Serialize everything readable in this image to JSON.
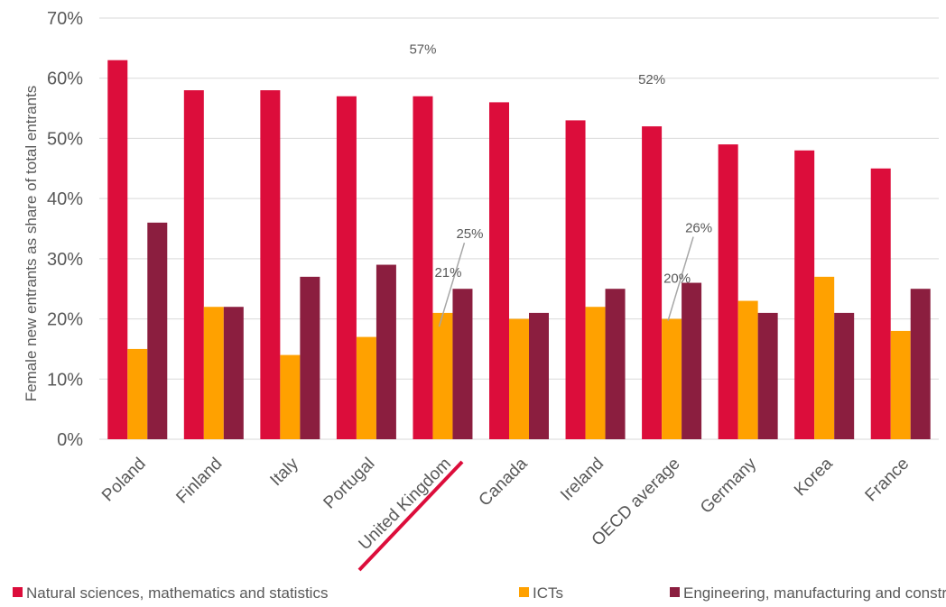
{
  "chart_data": {
    "type": "bar",
    "ylabel": "Female new entrants as share of  total entrants",
    "xlabel": "",
    "ylim": [
      0,
      70
    ],
    "yticks": [
      "0%",
      "10%",
      "20%",
      "30%",
      "40%",
      "50%",
      "60%",
      "70%"
    ],
    "grid": true,
    "legend_position": "bottom",
    "categories": [
      "Poland",
      "Finland",
      "Italy",
      "Portugal",
      "United Kingdom",
      "Canada",
      "Ireland",
      "OECD average",
      "Germany",
      "Korea",
      "France"
    ],
    "highlighted_category": "United Kingdom",
    "series": [
      {
        "name": "Natural sciences, mathematics and statistics",
        "color": "#dc0d3b",
        "values": [
          63,
          58,
          58,
          57,
          57,
          56,
          53,
          52,
          49,
          48,
          45
        ]
      },
      {
        "name": "ICTs",
        "color": "#ffa100",
        "values": [
          15,
          22,
          14,
          17,
          21,
          20,
          22,
          20,
          23,
          27,
          18
        ]
      },
      {
        "name": "Engineering, manufacturing and construction",
        "color": "#8b1e3f",
        "values": [
          36,
          22,
          27,
          29,
          25,
          21,
          25,
          26,
          21,
          21,
          25
        ]
      }
    ],
    "data_labels": [
      {
        "category": "United Kingdom",
        "series": 0,
        "text": "57%"
      },
      {
        "category": "United Kingdom",
        "series": 1,
        "text": "21%"
      },
      {
        "category": "United Kingdom",
        "series": 2,
        "text": "25%"
      },
      {
        "category": "OECD average",
        "series": 0,
        "text": "52%"
      },
      {
        "category": "OECD average",
        "series": 1,
        "text": "20%"
      },
      {
        "category": "OECD average",
        "series": 2,
        "text": "26%"
      }
    ],
    "highlight_color": "#dc0d3b",
    "gridline_color": "#d9d9d9"
  }
}
